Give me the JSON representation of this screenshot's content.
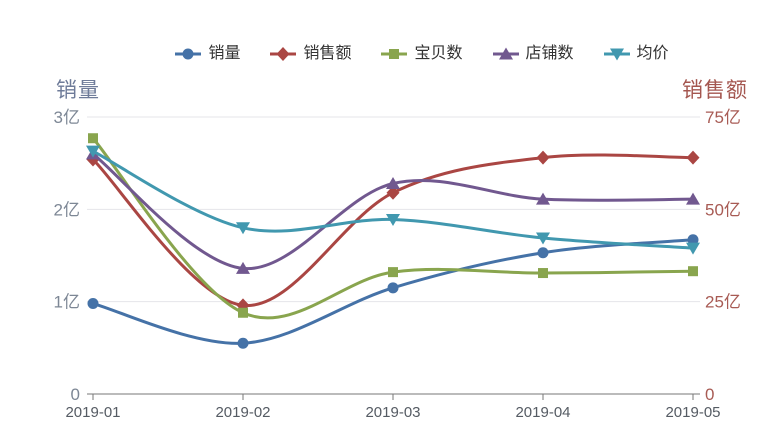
{
  "chart_data": {
    "type": "line",
    "smooth": true,
    "grid": true,
    "legend_position": "top",
    "background": "#ffffff",
    "grid_color": "#e4e4e9",
    "categories": [
      "2019-01",
      "2019-02",
      "2019-03",
      "2019-04",
      "2019-05"
    ],
    "left_axis": {
      "title": "销量",
      "title_color": "#6e7b99",
      "tick_color": "#7d8795",
      "range": [
        0,
        3
      ],
      "ticks": [
        {
          "value": 0,
          "label": "0"
        },
        {
          "value": 1,
          "label": "1亿"
        },
        {
          "value": 2,
          "label": "2亿"
        },
        {
          "value": 3,
          "label": "3亿"
        }
      ]
    },
    "right_axis": {
      "title": "销售额",
      "title_color": "#a4564f",
      "tick_color": "#a85b54",
      "range": [
        0,
        75
      ],
      "ticks": [
        {
          "value": 0,
          "label": "0"
        },
        {
          "value": 25,
          "label": "25亿"
        },
        {
          "value": 50,
          "label": "50亿"
        },
        {
          "value": 75,
          "label": "75亿"
        }
      ]
    },
    "x_axis": {
      "label_color": "#555b63",
      "line_color": "#777777"
    },
    "series": [
      {
        "id": "sales-volume",
        "name": "销量",
        "color": "#4572a7",
        "symbol": "circle",
        "axis": "left",
        "values": [
          0.98,
          0.55,
          1.15,
          1.53,
          1.67
        ]
      },
      {
        "id": "sales-revenue",
        "name": "销售额",
        "color": "#aa4643",
        "symbol": "diamond",
        "axis": "right",
        "values": [
          63.5,
          24,
          54.5,
          64,
          64
        ]
      },
      {
        "id": "item-count",
        "name": "宝贝数",
        "color": "#89a54e",
        "symbol": "square",
        "axis": "left",
        "values": [
          2.77,
          0.88,
          1.32,
          1.31,
          1.33
        ]
      },
      {
        "id": "shop-count",
        "name": "店铺数",
        "color": "#71588f",
        "symbol": "triangle-up",
        "axis": "left",
        "values": [
          2.6,
          1.36,
          2.28,
          2.11,
          2.11
        ]
      },
      {
        "id": "avg-price",
        "name": "均价",
        "color": "#4198af",
        "symbol": "triangle-down",
        "axis": "left",
        "values": [
          2.63,
          1.8,
          1.89,
          1.69,
          1.58
        ]
      }
    ]
  }
}
